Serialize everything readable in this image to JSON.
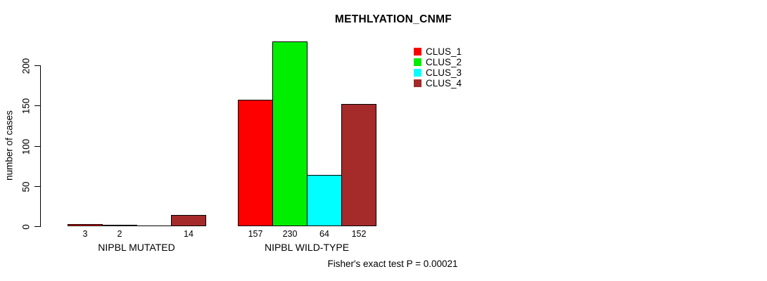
{
  "chart_data": {
    "type": "bar",
    "title": "METHLYATION_CNMF",
    "ylabel": "number of cases",
    "xlabel": "",
    "ylim": [
      0,
      230
    ],
    "y_ticks": [
      0,
      50,
      100,
      150,
      200
    ],
    "grid": false,
    "legend_position": "top-right",
    "categories": [
      "NIPBL MUTATED",
      "NIPBL WILD-TYPE"
    ],
    "series": [
      {
        "name": "CLUS_1",
        "color": "#ff0000",
        "values": [
          3,
          157
        ]
      },
      {
        "name": "CLUS_2",
        "color": "#00ee00",
        "values": [
          2,
          230
        ]
      },
      {
        "name": "CLUS_3",
        "color": "#00ffff",
        "values": [
          0,
          64
        ]
      },
      {
        "name": "CLUS_4",
        "color": "#a52a2a",
        "values": [
          14,
          152
        ]
      }
    ],
    "bar_value_labels": [
      [
        "3",
        "2",
        "",
        "14"
      ],
      [
        "157",
        "230",
        "64",
        "152"
      ]
    ],
    "annotation": "Fisher's exact test P = 0.00021",
    "axis_color": "#000000",
    "background_color": "#ffffff"
  }
}
